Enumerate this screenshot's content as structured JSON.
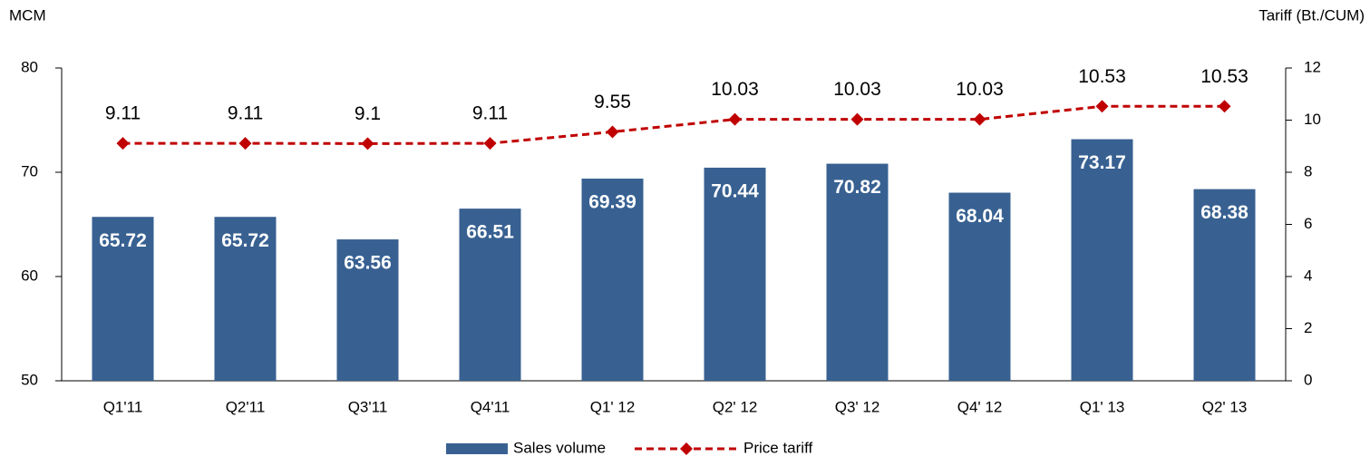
{
  "chart_data": {
    "type": "bar",
    "y_label": "MCM",
    "y2_label": "Tariff (Bt./CUM)",
    "categories": [
      "Q1'11",
      "Q2'11",
      "Q3'11",
      "Q4'11",
      "Q1' 12",
      "Q2' 12",
      "Q3' 12",
      "Q4' 12",
      "Q1' 13",
      "Q2' 13"
    ],
    "series": [
      {
        "name": "Sales volume",
        "type": "bar",
        "color": "#386192",
        "values": [
          65.72,
          65.72,
          63.56,
          66.51,
          69.39,
          70.44,
          70.82,
          68.04,
          73.17,
          68.38
        ]
      },
      {
        "name": "Price tariff",
        "type": "line",
        "axis": "y2",
        "color": "#c00000",
        "values": [
          9.11,
          9.11,
          9.1,
          9.11,
          9.55,
          10.03,
          10.03,
          10.03,
          10.53,
          10.53
        ]
      }
    ],
    "ylim": [
      50,
      80
    ],
    "yticks": [
      50,
      60,
      70,
      80
    ],
    "y2lim": [
      0,
      12
    ],
    "y2ticks": [
      0,
      2,
      4,
      6,
      8,
      10,
      12
    ],
    "legend": "bottom"
  }
}
